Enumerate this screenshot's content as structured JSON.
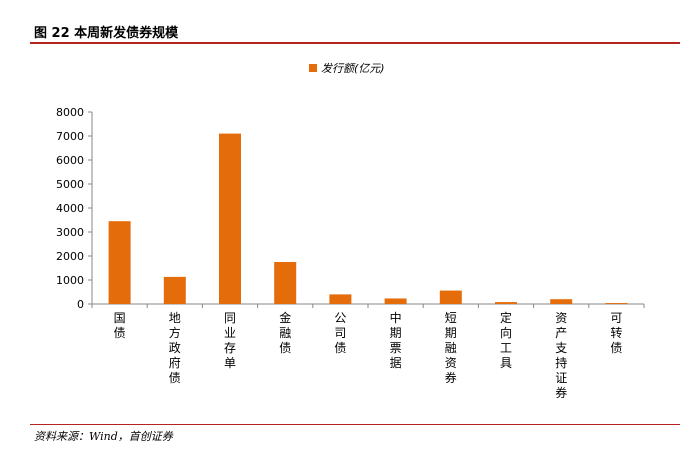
{
  "header": {
    "title": "图 22 本周新发债券规模"
  },
  "footer": {
    "source": "资料来源：Wind，首创证券"
  },
  "colors": {
    "bar": "#E46C0A",
    "rule": "#B5231F"
  },
  "chart_data": {
    "type": "bar",
    "title": "",
    "xlabel": "",
    "ylabel": "",
    "ylim": [
      0,
      8000
    ],
    "yticks": [
      0,
      1000,
      2000,
      3000,
      4000,
      5000,
      6000,
      7000,
      8000
    ],
    "legend": "top",
    "grid": false,
    "categories": [
      "国债",
      "地方政府债",
      "同业存单",
      "金融债",
      "公司债",
      "中期票据",
      "短期融资券",
      "定向工具",
      "资产支持证券",
      "可转债"
    ],
    "series": [
      {
        "name": "发行额(亿元)",
        "values": [
          3450,
          1130,
          7100,
          1750,
          400,
          230,
          560,
          80,
          200,
          40
        ]
      }
    ]
  }
}
